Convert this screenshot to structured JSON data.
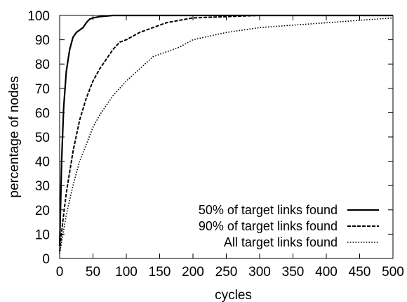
{
  "chart_data": {
    "type": "line",
    "title": "",
    "xlabel": "cycles",
    "ylabel": "percentage of nodes",
    "xlim": [
      0,
      500
    ],
    "ylim": [
      0,
      100
    ],
    "xticks": [
      0,
      50,
      100,
      150,
      200,
      250,
      300,
      350,
      400,
      450,
      500
    ],
    "yticks": [
      0,
      10,
      20,
      30,
      40,
      50,
      60,
      70,
      80,
      90,
      100
    ],
    "grid": false,
    "legend_position": "bottom-right",
    "series": [
      {
        "name": "50% of target links found",
        "style": "solid",
        "x": [
          0,
          3,
          6,
          10,
          15,
          20,
          25,
          30,
          35,
          40,
          45,
          50,
          60,
          80,
          100,
          500
        ],
        "y": [
          5,
          40,
          62,
          77,
          86,
          91,
          93,
          94,
          95,
          97,
          98.5,
          99,
          99.5,
          100,
          100,
          100
        ]
      },
      {
        "name": "90% of target links found",
        "style": "dashed",
        "x": [
          0,
          5,
          10,
          20,
          30,
          40,
          50,
          60,
          70,
          80,
          90,
          100,
          120,
          140,
          160,
          180,
          200,
          250,
          300,
          350,
          400,
          500
        ],
        "y": [
          3,
          16,
          27,
          44,
          57,
          66,
          73,
          78,
          82,
          86,
          89,
          90,
          93,
          95,
          97,
          98,
          99,
          99.5,
          100,
          100,
          100,
          100
        ]
      },
      {
        "name": "All target links found",
        "style": "dotted",
        "x": [
          0,
          10,
          20,
          30,
          40,
          50,
          60,
          70,
          80,
          90,
          100,
          120,
          140,
          160,
          180,
          200,
          250,
          300,
          350,
          400,
          450,
          500
        ],
        "y": [
          2,
          18,
          30,
          40,
          47,
          54,
          59,
          63,
          67,
          70,
          73,
          78,
          83,
          85,
          87,
          90,
          93,
          95,
          96,
          97,
          98,
          99
        ]
      }
    ]
  }
}
